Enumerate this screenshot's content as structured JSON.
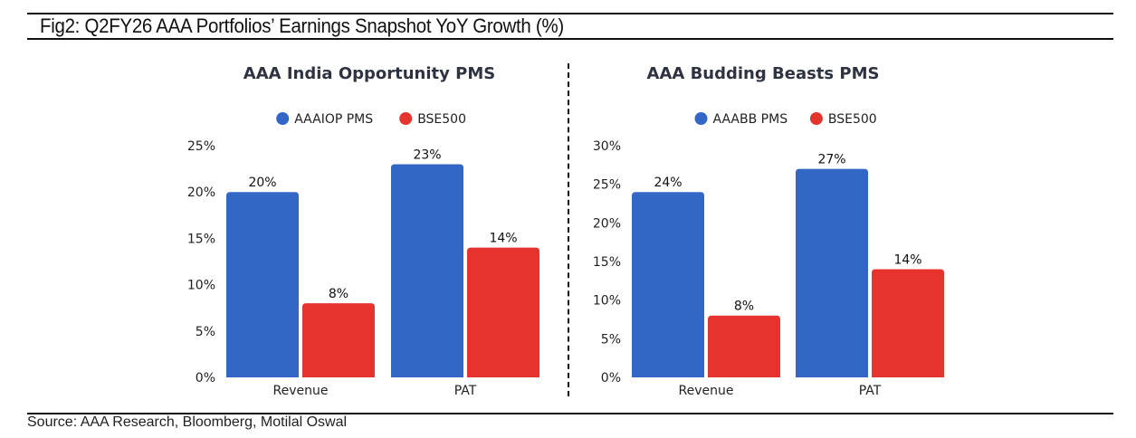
{
  "figure": {
    "title": "Fig2: Q2FY26 AAA Portfolios’ Earnings Snapshot YoY Growth (%)",
    "source": "Source: AAA Research, Bloomberg, Motilal Oswal"
  },
  "colors": {
    "portfolio": "#3367C6",
    "benchmark": "#E6332E"
  },
  "chart_data": [
    {
      "type": "bar",
      "title": "AAA India Opportunity PMS",
      "categories": [
        "Revenue",
        "PAT"
      ],
      "series": [
        {
          "name": "AAAIOP PMS",
          "values": [
            20,
            23
          ],
          "labels": [
            "20%",
            "23%"
          ],
          "color": "#3367C6"
        },
        {
          "name": "BSE500",
          "values": [
            8,
            14
          ],
          "labels": [
            "8%",
            "14%"
          ],
          "color": "#E6332E"
        }
      ],
      "ylim": [
        0,
        25
      ],
      "yticks": [
        0,
        5,
        10,
        15,
        20,
        25
      ],
      "ytick_labels": [
        "0%",
        "5%",
        "10%",
        "15%",
        "20%",
        "25%"
      ],
      "xlabel": "",
      "ylabel": "",
      "grid": false,
      "legend": "top-center"
    },
    {
      "type": "bar",
      "title": "AAA Budding Beasts PMS",
      "categories": [
        "Revenue",
        "PAT"
      ],
      "series": [
        {
          "name": "AAABB PMS",
          "values": [
            24,
            27
          ],
          "labels": [
            "24%",
            "27%"
          ],
          "color": "#3367C6"
        },
        {
          "name": "BSE500",
          "values": [
            8,
            14
          ],
          "labels": [
            "8%",
            "14%"
          ],
          "color": "#E6332E"
        }
      ],
      "ylim": [
        0,
        30
      ],
      "yticks": [
        0,
        5,
        10,
        15,
        20,
        25,
        30
      ],
      "ytick_labels": [
        "0%",
        "5%",
        "10%",
        "15%",
        "20%",
        "25%",
        "30%"
      ],
      "xlabel": "",
      "ylabel": "",
      "grid": false,
      "legend": "top-center"
    }
  ]
}
